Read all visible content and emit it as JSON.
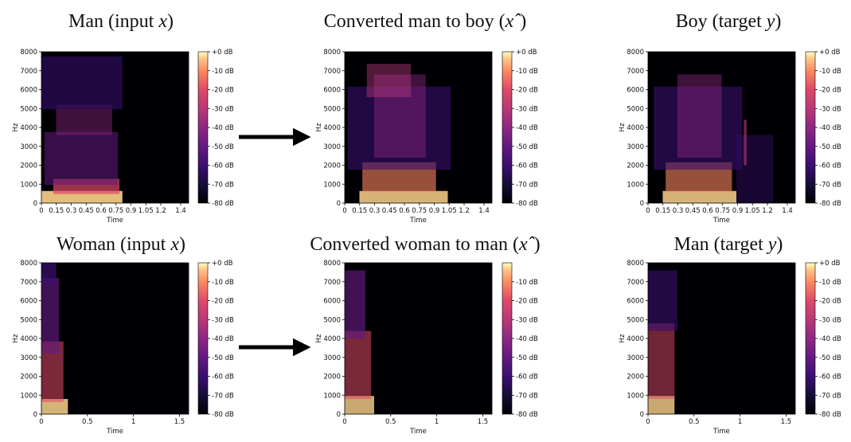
{
  "panels": [
    {
      "id": "man-input",
      "title": "Man (input x)",
      "title_parts": [
        "Man (input ",
        "x",
        ")"
      ],
      "x_ticks": [
        "0",
        "0.15",
        "0.3",
        "0.45",
        "0.6",
        "0.75",
        "0.9",
        "1.05",
        "1.2",
        "1.4"
      ],
      "x_label": "Time",
      "y_ticks": [
        "0",
        "1000",
        "2000",
        "3000",
        "4000",
        "5000",
        "6000",
        "7000",
        "8000"
      ],
      "y_label": "Hz",
      "colorbar_ticks": [
        "+0 dB",
        "-10 dB",
        "-20 dB",
        "-30 dB",
        "-40 dB",
        "-50 dB",
        "-60 dB",
        "-70 dB",
        "-80 dB"
      ]
    },
    {
      "id": "converted-man-to-boy",
      "title": "Converted man to boy (xˆ)",
      "title_parts": [
        "Converted man to boy (",
        "xˆ",
        ")"
      ],
      "x_ticks": [
        "0",
        "0.15",
        "0.3",
        "0.45",
        "0.6",
        "0.75",
        "0.9",
        "1.05",
        "1.2",
        "1.4"
      ],
      "x_label": "Time",
      "y_ticks": [
        "0",
        "1000",
        "2000",
        "3000",
        "4000",
        "5000",
        "6000",
        "7000",
        "8000"
      ],
      "y_label": "Hz",
      "colorbar_ticks": [
        "+0 dB",
        "-10 dB",
        "-20 dB",
        "-30 dB",
        "-40 dB",
        "-50 dB",
        "-60 dB",
        "-70 dB",
        "-80 dB"
      ]
    },
    {
      "id": "boy-target",
      "title": "Boy (target y)",
      "title_parts": [
        "Boy (target ",
        "y",
        ")"
      ],
      "x_ticks": [
        "0",
        "0.15",
        "0.3",
        "0.45",
        "0.6",
        "0.75",
        "0.9",
        "1.05",
        "1.2",
        "1.4"
      ],
      "x_label": "Time",
      "y_ticks": [
        "0",
        "1000",
        "2000",
        "3000",
        "4000",
        "5000",
        "6000",
        "7000",
        "8000"
      ],
      "y_label": "Hz",
      "colorbar_ticks": [
        "+0 dB",
        "-10 dB",
        "-20 dB",
        "-30 dB",
        "-40 dB",
        "-50 dB",
        "-60 dB",
        "-70 dB",
        "-80 dB"
      ]
    },
    {
      "id": "woman-input",
      "title": "Woman (input x)",
      "title_parts": [
        "Woman (input ",
        "x",
        ")"
      ],
      "x_ticks": [
        "0",
        "0.5",
        "1",
        "1.5"
      ],
      "x_label": "Time",
      "y_ticks": [
        "0",
        "1000",
        "2000",
        "3000",
        "4000",
        "5000",
        "6000",
        "7000",
        "8000"
      ],
      "y_label": "Hz",
      "colorbar_ticks": [
        "+0 dB",
        "-10 dB",
        "-20 dB",
        "-30 dB",
        "-40 dB",
        "-50 dB",
        "-60 dB",
        "-70 dB",
        "-80 dB"
      ]
    },
    {
      "id": "converted-woman-to-man",
      "title": "Converted woman to man (xˆ)",
      "title_parts": [
        "Converted woman to man (",
        "xˆ",
        ")"
      ],
      "x_ticks": [
        "0",
        "0.5",
        "1",
        "1.5"
      ],
      "x_label": "Time",
      "y_ticks": [
        "0",
        "1000",
        "2000",
        "3000",
        "4000",
        "5000",
        "6000",
        "7000",
        "8000"
      ],
      "y_label": "Hz",
      "colorbar_ticks": [
        "-10 dB",
        "-20 dB",
        "-30 dB",
        "-40 dB",
        "-50 dB",
        "-60 dB",
        "-70 dB",
        "-80 dB"
      ]
    },
    {
      "id": "man-target",
      "title": "Man (target y)",
      "title_parts": [
        "Man (target ",
        "y",
        ")"
      ],
      "x_ticks": [
        "0",
        "0.5",
        "1",
        "1.5"
      ],
      "x_label": "Time",
      "y_ticks": [
        "0",
        "1000",
        "2000",
        "3000",
        "4000",
        "5000",
        "6000",
        "7000",
        "8000"
      ],
      "y_label": "Hz",
      "colorbar_ticks": [
        "+0 dB",
        "-10 dB",
        "-20 dB",
        "-30 dB",
        "-40 dB",
        "-50 dB",
        "-60 dB",
        "-70 dB",
        "-80 dB"
      ]
    }
  ],
  "arrows": [
    "conversion-arrow",
    "conversion-arrow"
  ],
  "colors": {
    "background": "#000004",
    "text": "#111111",
    "arrow": "#000000"
  }
}
